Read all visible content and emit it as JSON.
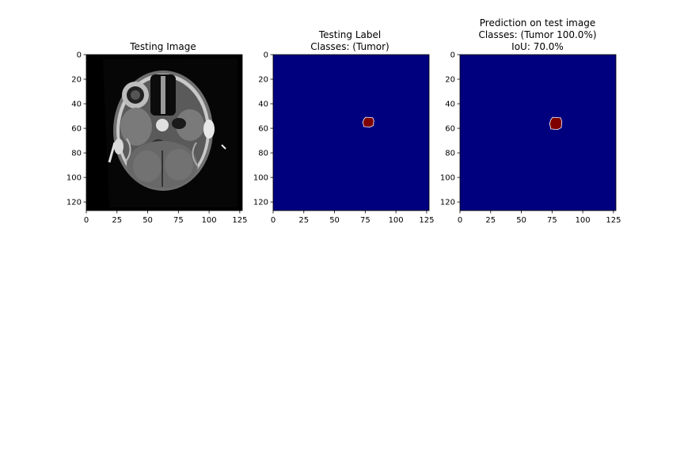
{
  "chart_data": [
    {
      "type": "image",
      "title_lines": [
        "Testing Image"
      ],
      "content": "grayscale brain MRI axial slice",
      "colormap": "gray",
      "xlim": [
        0,
        127
      ],
      "ylim": [
        127,
        0
      ],
      "xticks": [
        0,
        25,
        50,
        75,
        100,
        125
      ],
      "yticks": [
        0,
        20,
        40,
        60,
        80,
        100,
        120
      ]
    },
    {
      "type": "heatmap",
      "title_lines": [
        "Testing Label",
        "Classes: (Tumor)"
      ],
      "colormap": "jet",
      "background_color": "#00007f",
      "mask_color": "#7f0000",
      "region": {
        "x_center": 77,
        "y_center": 55,
        "x_range": [
          73,
          82
        ],
        "y_range": [
          51,
          59
        ]
      },
      "xlim": [
        0,
        127
      ],
      "ylim": [
        127,
        0
      ],
      "xticks": [
        0,
        25,
        50,
        75,
        100,
        125
      ],
      "yticks": [
        0,
        20,
        40,
        60,
        80,
        100,
        120
      ]
    },
    {
      "type": "heatmap",
      "title_lines": [
        "Prediction on test image",
        "Classes: (Tumor 100.0%)",
        "IoU: 70.0%"
      ],
      "colormap": "jet",
      "background_color": "#00007f",
      "mask_color": "#7f0000",
      "region": {
        "x_center": 78,
        "y_center": 56,
        "x_range": [
          73,
          83
        ],
        "y_range": [
          51,
          61
        ]
      },
      "xlim": [
        0,
        127
      ],
      "ylim": [
        127,
        0
      ],
      "xticks": [
        0,
        25,
        50,
        75,
        100,
        125
      ],
      "yticks": [
        0,
        20,
        40,
        60,
        80,
        100,
        120
      ]
    }
  ]
}
